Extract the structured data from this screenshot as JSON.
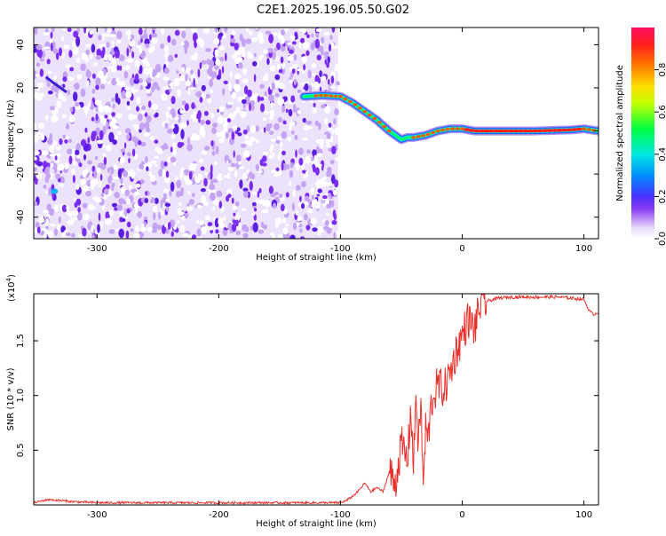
{
  "page": {
    "title": "C2E1.2025.196.05.50.G02"
  },
  "chart_data": [
    {
      "type": "heatmap",
      "xlabel": "Height of straight line (km)",
      "ylabel": "Frequency (Hz)",
      "xlim": [
        -352,
        112
      ],
      "ylim": [
        -50,
        48
      ],
      "xticks": [
        -300,
        -200,
        -100,
        0,
        100
      ],
      "yticks": [
        -40,
        -20,
        0,
        20,
        40
      ],
      "xtick_labels": [
        "-300",
        "-200",
        "-100",
        "0",
        "100"
      ],
      "ytick_labels": [
        "-40",
        "-20",
        "0",
        "20",
        "40"
      ],
      "noise_region_x": [
        -352,
        -102
      ],
      "signal_track": {
        "x": [
          -130,
          -115,
          -100,
          -90,
          -80,
          -70,
          -60,
          -50,
          -45,
          -40,
          -30,
          -20,
          -10,
          0,
          10,
          30,
          60,
          90,
          100,
          112
        ],
        "y": [
          16,
          16.5,
          16,
          13,
          9,
          5,
          0,
          -4,
          -3,
          -3,
          -2,
          0,
          1,
          1,
          0,
          0,
          0,
          0.5,
          1,
          0
        ]
      },
      "colorbar": {
        "label": "Normalized spectral amplitude",
        "range": [
          0,
          1
        ],
        "ticks": [
          0.0,
          0.2,
          0.4,
          0.6,
          0.8
        ],
        "tick_labels": [
          "0.0",
          "0.2",
          "0.4",
          "0.6",
          "0.8"
        ],
        "colormap": [
          "#ffffff",
          "#b07ce8",
          "#7a2cf0",
          "#1a5cff",
          "#00d8ff",
          "#00ff66",
          "#f4ff00",
          "#ff7700",
          "#ff1040"
        ]
      }
    },
    {
      "type": "line",
      "xlabel": "Height of straight line (km)",
      "ylabel": "SNR (10 * v/v)",
      "scale_note": "(x10",
      "scale_exp": "4",
      "scale_close": ")",
      "xlim": [
        -352,
        112
      ],
      "ylim": [
        0,
        1.93
      ],
      "xticks": [
        -300,
        -200,
        -100,
        0,
        100
      ],
      "yticks": [
        0.5,
        1.0,
        1.5
      ],
      "xtick_labels": [
        "-300",
        "-200",
        "-100",
        "0",
        "100"
      ],
      "ytick_labels": [
        "0.5",
        "1.0",
        "1.5"
      ],
      "color": "#e8302a",
      "series": [
        {
          "x": [
            -352,
            -340,
            -320,
            -300,
            -250,
            -200,
            -150,
            -110,
            -100,
            -95,
            -90,
            -85,
            -80,
            -75,
            -70,
            -65,
            -60,
            -55,
            -50,
            -45,
            -42,
            -40,
            -38,
            -36,
            -34,
            -32,
            -30,
            -28,
            -25,
            -20,
            -15,
            -10,
            -5,
            0,
            5,
            10,
            15,
            20,
            30,
            40,
            60,
            80,
            100,
            104,
            108,
            112
          ],
          "y": [
            0.02,
            0.05,
            0.03,
            0.02,
            0.02,
            0.02,
            0.02,
            0.02,
            0.02,
            0.04,
            0.08,
            0.13,
            0.2,
            0.12,
            0.16,
            0.12,
            0.3,
            0.2,
            0.55,
            0.4,
            0.9,
            0.3,
            1.05,
            0.5,
            0.95,
            0.15,
            0.7,
            0.6,
            0.95,
            1.1,
            1.05,
            1.2,
            1.4,
            1.55,
            1.7,
            1.6,
            1.83,
            1.86,
            1.89,
            1.9,
            1.9,
            1.9,
            1.88,
            1.78,
            1.74,
            1.76
          ]
        }
      ]
    }
  ]
}
